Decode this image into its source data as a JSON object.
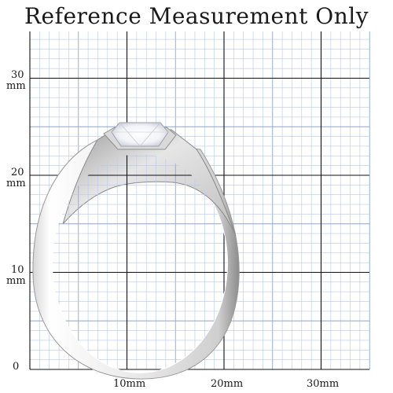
{
  "title": "Reference Measurement Only",
  "y_axis": {
    "labels": [
      {
        "value": "30",
        "unit": "mm"
      },
      {
        "value": "20",
        "unit": "mm"
      },
      {
        "value": "10",
        "unit": "mm"
      },
      {
        "value": "0",
        "unit": ""
      }
    ]
  },
  "x_axis": {
    "labels": [
      "10mm",
      "20mm",
      "30mm"
    ]
  },
  "colors": {
    "minor_grid": "#b8c8e8",
    "major_grid": "#111111",
    "metal_light": "#f4f4f4",
    "metal_dark": "#8a8a8a"
  },
  "object": "silver-solitaire-ring"
}
